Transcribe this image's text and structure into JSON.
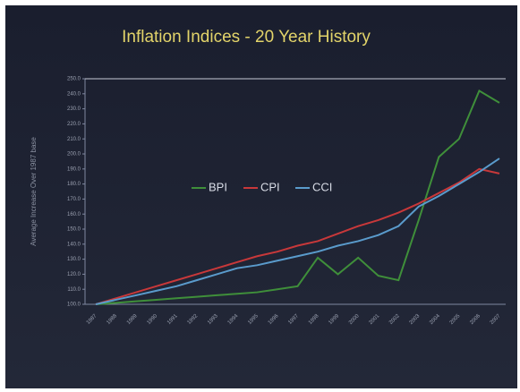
{
  "chart_data": {
    "type": "line",
    "title": "Inflation Indices - 20 Year History",
    "y_label": "Average Increase Over 1987 base",
    "categories": [
      "1987",
      "1988",
      "1989",
      "1990",
      "1991",
      "1992",
      "1993",
      "1994",
      "1995",
      "1996",
      "1997",
      "1998",
      "1999",
      "2000",
      "2001",
      "2002",
      "2003",
      "2004",
      "2005",
      "2006",
      "2007"
    ],
    "series": [
      {
        "name": "BPI",
        "color": "#3f8f3a",
        "values": [
          100,
          101,
          102,
          103,
          104,
          105,
          106,
          107,
          108,
          110,
          112,
          131,
          120,
          131,
          119,
          116,
          156,
          198,
          210,
          242,
          234
        ]
      },
      {
        "name": "CPI",
        "color": "#c8383a",
        "values": [
          100,
          104,
          108,
          112,
          116,
          120,
          124,
          128,
          132,
          135,
          139,
          142,
          147,
          152,
          156,
          161,
          167,
          174,
          181,
          190,
          187
        ]
      },
      {
        "name": "CCI",
        "color": "#5a9bcc",
        "values": [
          100,
          103,
          106,
          109,
          112,
          116,
          120,
          124,
          126,
          129,
          132,
          135,
          139,
          142,
          146,
          152,
          165,
          172,
          180,
          188,
          197
        ]
      }
    ],
    "ylim": [
      100,
      250
    ],
    "yticks": [
      {
        "value": 100,
        "label": "100.0"
      },
      {
        "value": 110,
        "label": "110.0"
      },
      {
        "value": 120,
        "label": "120.0"
      },
      {
        "value": 130,
        "label": "130.0"
      },
      {
        "value": 140,
        "label": "140.0"
      },
      {
        "value": 150,
        "label": "150.0"
      },
      {
        "value": 160,
        "label": "160.0"
      },
      {
        "value": 170,
        "label": "170.0"
      },
      {
        "value": 180,
        "label": "180.0"
      },
      {
        "value": 190,
        "label": "190.0"
      },
      {
        "value": 200,
        "label": "200.0"
      },
      {
        "value": 210,
        "label": "210.0"
      },
      {
        "value": 220,
        "label": "220.0"
      },
      {
        "value": 230,
        "label": "230.0"
      },
      {
        "value": 240,
        "label": "240.0"
      },
      {
        "value": 250,
        "label": "250.0"
      }
    ],
    "grid": false,
    "legend": "center"
  }
}
